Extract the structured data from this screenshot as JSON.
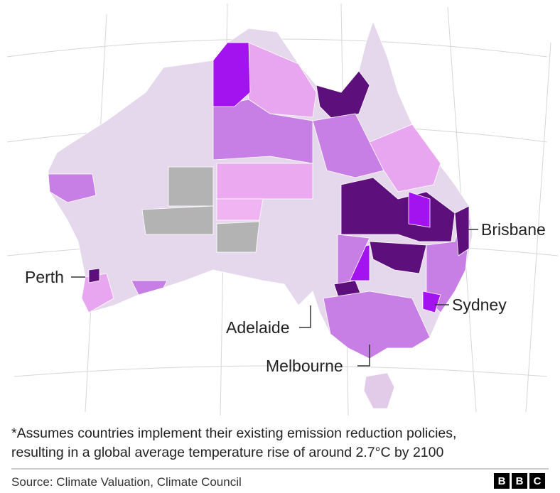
{
  "map": {
    "labels": [
      "Perth",
      "Brisbane",
      "Sydney",
      "Adelaide",
      "Melbourne"
    ]
  },
  "footnote": [
    "*Assumes countries implement their existing emission reduction policies,",
    "resulting in a global average temperature rise of around 2.7°C by 2100"
  ],
  "source": "Source: Climate Valuation, Climate Council",
  "logo": [
    "B",
    "B",
    "C"
  ]
}
